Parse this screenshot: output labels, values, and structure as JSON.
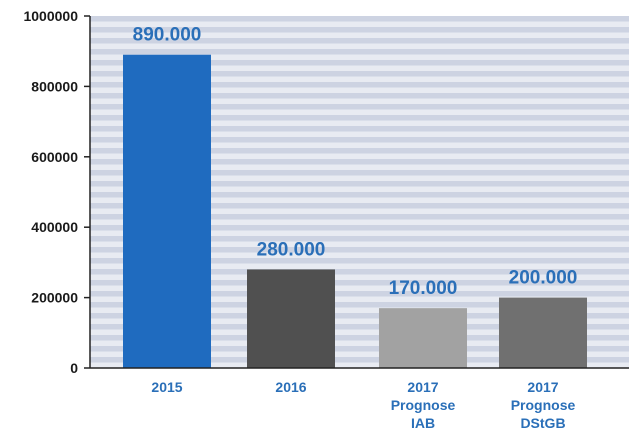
{
  "chart_data": {
    "type": "bar",
    "categories": [
      [
        "2015"
      ],
      [
        "2016"
      ],
      [
        "2017",
        "Prognose",
        "IAB"
      ],
      [
        "2017",
        "Prognose",
        "DStGB"
      ]
    ],
    "values": [
      890000,
      280000,
      170000,
      200000
    ],
    "value_labels": [
      "890.000",
      "280.000",
      "170.000",
      "200.000"
    ],
    "bar_colors": [
      "#1f6bbf",
      "#505050",
      "#a2a2a2",
      "#707070"
    ],
    "y_ticks": [
      0,
      200000,
      400000,
      600000,
      800000,
      1000000
    ],
    "y_tick_labels": [
      "0",
      "200000",
      "400000",
      "600000",
      "800000",
      "1000000"
    ],
    "ylim": [
      0,
      1000000
    ],
    "grid": "horizontal stripes",
    "title": "",
    "xlabel": "",
    "ylabel": ""
  },
  "colors": {
    "label_blue": "#2a6fb8",
    "stripe_dark": "#cdd3e2",
    "stripe_light": "#e8ebf2",
    "axis": "#222222"
  }
}
